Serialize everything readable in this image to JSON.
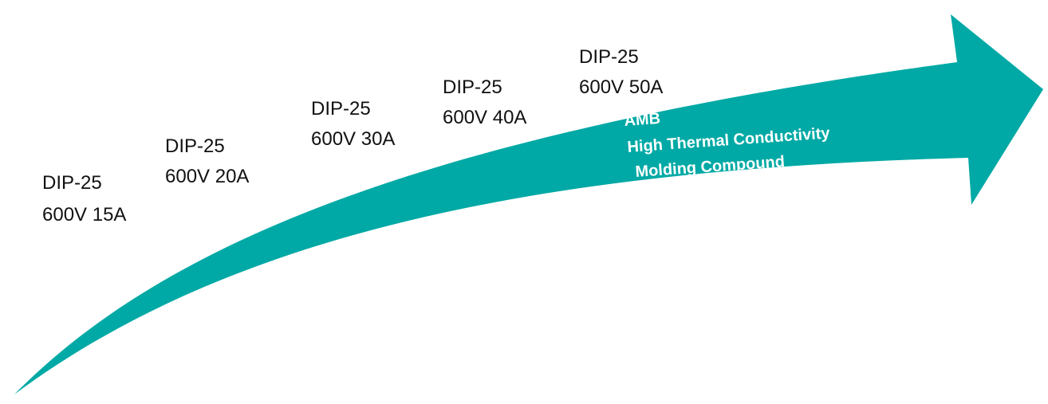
{
  "stages": [
    {
      "package": "DIP-25",
      "rating": "600V 15A"
    },
    {
      "package": "DIP-25",
      "rating": "600V 20A"
    },
    {
      "package": "DIP-25",
      "rating": "600V 30A"
    },
    {
      "package": "DIP-25",
      "rating": "600V 40A"
    },
    {
      "package": "DIP-25",
      "rating": "600V 50A"
    }
  ],
  "arrow": {
    "lines": [
      "AMB",
      "High Thermal Conductivity",
      "Molding Compound"
    ]
  }
}
